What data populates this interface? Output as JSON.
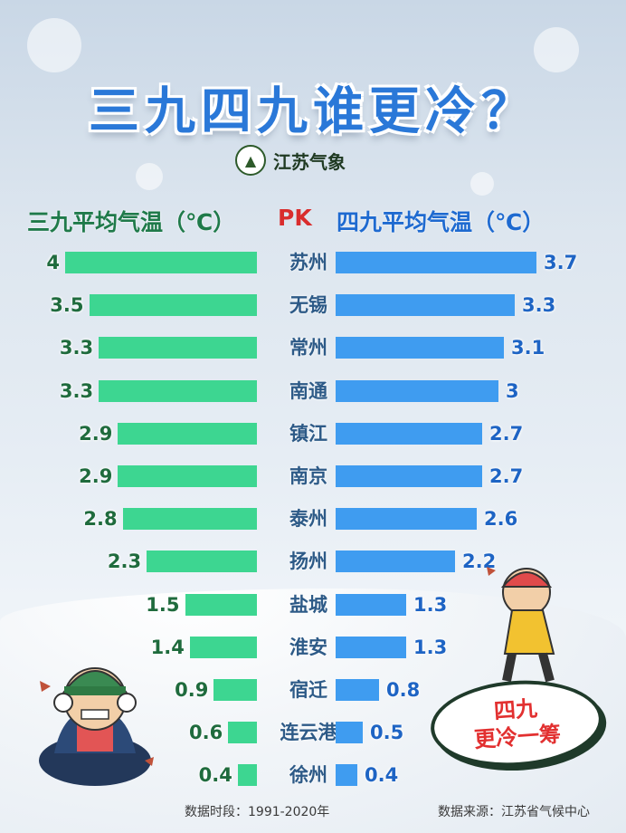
{
  "title": "三九四九谁更冷？",
  "brand": {
    "name": "江苏气象",
    "logo_icon": "weather-bureau-logo-icon"
  },
  "headers": {
    "left": "三九平均气温（℃）",
    "pk": "PK",
    "right": "四九平均气温（℃）"
  },
  "badge": {
    "line1": "四九",
    "line2": "更冷一筹"
  },
  "footer": {
    "period": "数据时段：1991-2020年",
    "source": "数据来源：江苏省气候中心"
  },
  "colors": {
    "sanjiu_bar": "#3dd691",
    "sijiu_bar": "#3f9cf0",
    "title": "#2a78d8",
    "pk": "#d92d2d",
    "badge_text": "#e23030"
  },
  "chart_data": {
    "type": "bar",
    "orientation": "horizontal-mirrored",
    "categories": [
      "苏州",
      "无锡",
      "常州",
      "南通",
      "镇江",
      "南京",
      "泰州",
      "扬州",
      "盐城",
      "淮安",
      "宿迁",
      "连云港",
      "徐州"
    ],
    "series": [
      {
        "name": "三九平均气温（℃）",
        "values": [
          "4",
          "3.5",
          "3.3",
          "3.3",
          "2.9",
          "2.9",
          "2.8",
          "2.3",
          "1.5",
          "1.4",
          "0.9",
          "0.6",
          "0.4"
        ]
      },
      {
        "name": "四九平均气温（℃）",
        "values": [
          "3.7",
          "3.3",
          "3.1",
          "3",
          "2.7",
          "2.7",
          "2.6",
          "2.2",
          "1.3",
          "1.3",
          "0.8",
          "0.5",
          "0.4"
        ]
      }
    ],
    "xlim": [
      0,
      4
    ]
  }
}
